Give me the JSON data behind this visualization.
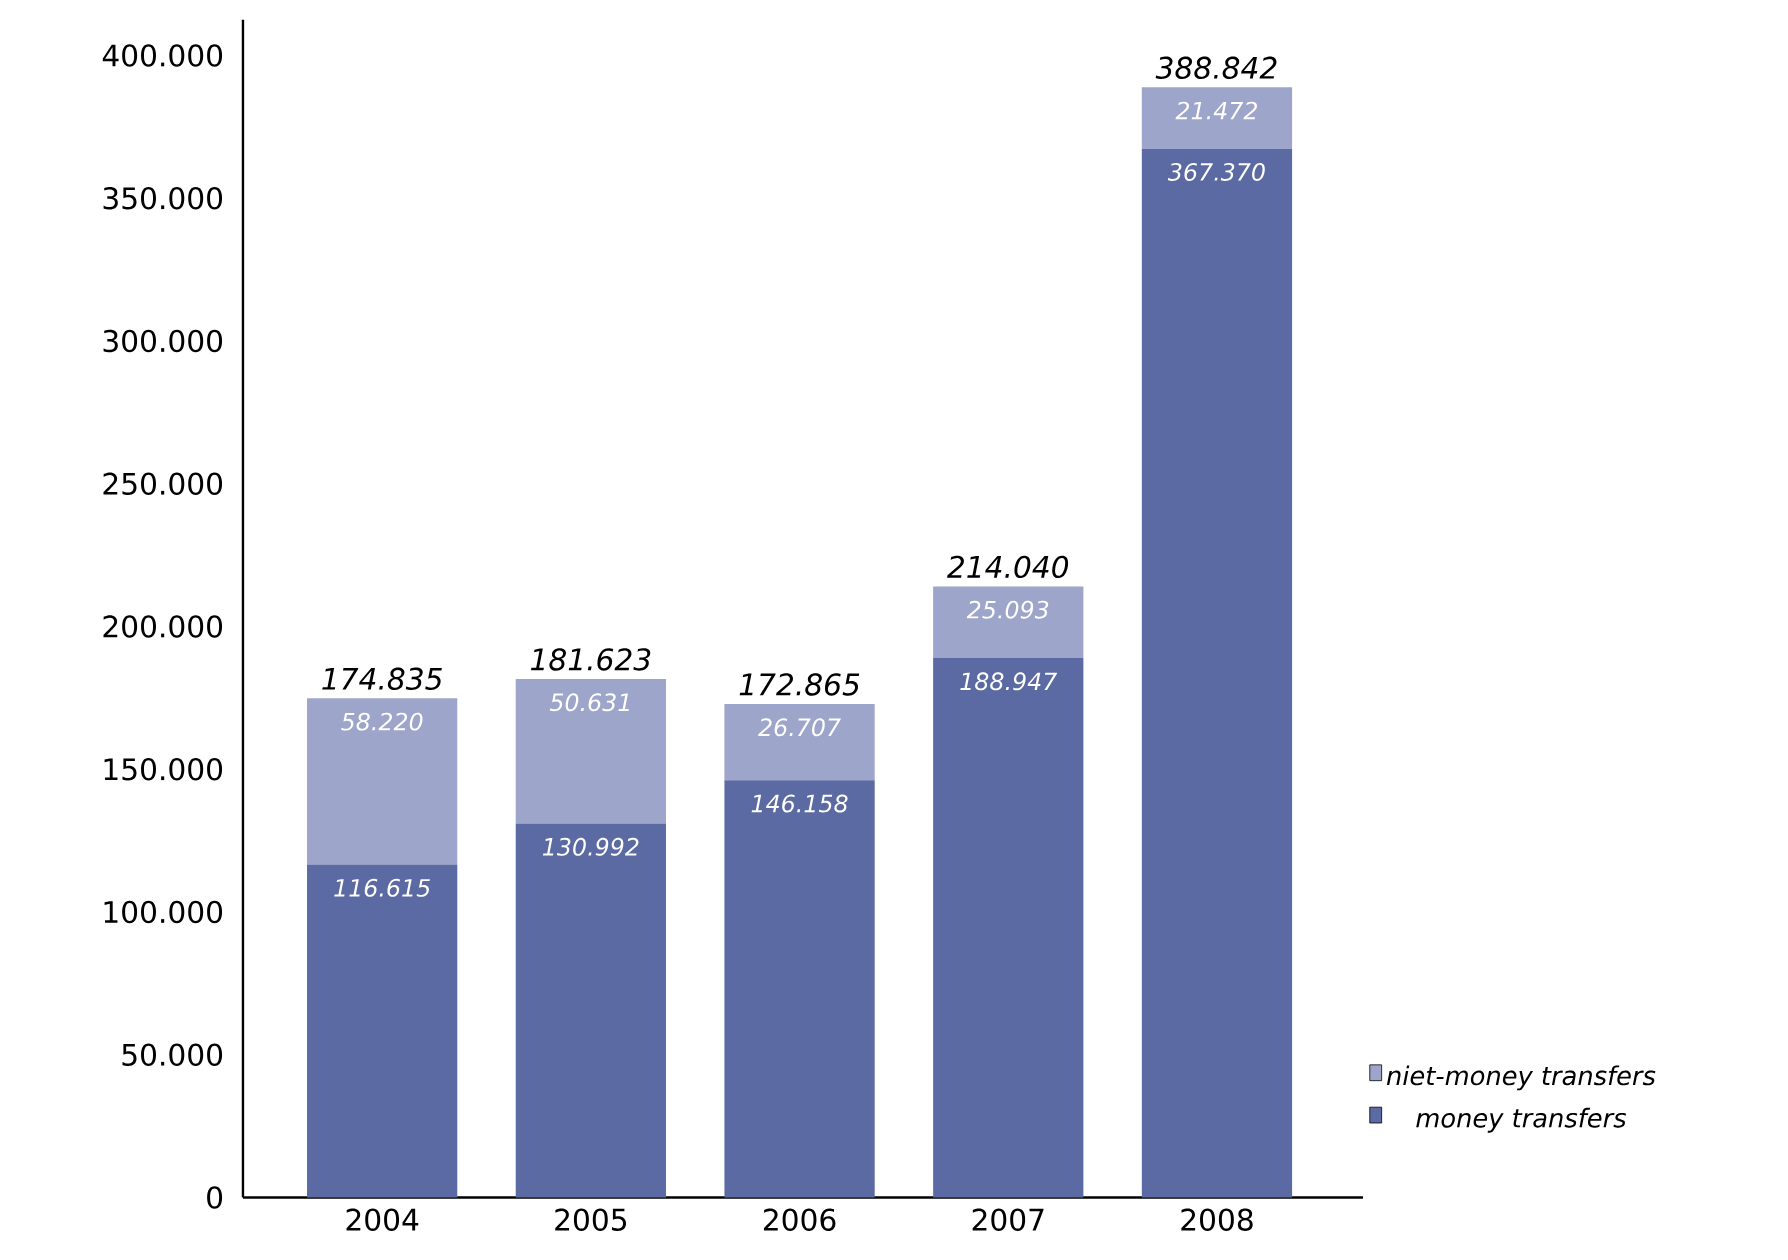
{
  "chart_data": {
    "type": "bar",
    "stacked": true,
    "categories": [
      "2004",
      "2005",
      "2006",
      "2007",
      "2008"
    ],
    "series": [
      {
        "name": "money transfers",
        "color": "#5b6aa3",
        "values": [
          116615,
          130992,
          146158,
          188947,
          367370
        ],
        "value_labels": [
          "116.615",
          "130.992",
          "146.158",
          "188.947",
          "367.370"
        ]
      },
      {
        "name": "niet-money transfers",
        "color": "#9ea5cb",
        "values": [
          58220,
          50631,
          26707,
          25093,
          21472
        ],
        "value_labels": [
          "58.220",
          "50.631",
          "26.707",
          "25.093",
          "21.472"
        ]
      }
    ],
    "totals": [
      "174.835",
      "181.623",
      "172.865",
      "214.040",
      "388.842"
    ],
    "ylim": [
      0,
      412500
    ],
    "yticks": [
      {
        "value": 0,
        "label": "0"
      },
      {
        "value": 50000,
        "label": "50.000"
      },
      {
        "value": 100000,
        "label": "100.000"
      },
      {
        "value": 150000,
        "label": "150.000"
      },
      {
        "value": 200000,
        "label": "200.000"
      },
      {
        "value": 250000,
        "label": "250.000"
      },
      {
        "value": 300000,
        "label": "300.000"
      },
      {
        "value": 350000,
        "label": "350.000"
      },
      {
        "value": 400000,
        "label": "400.000"
      }
    ],
    "legend": "bottom right"
  }
}
